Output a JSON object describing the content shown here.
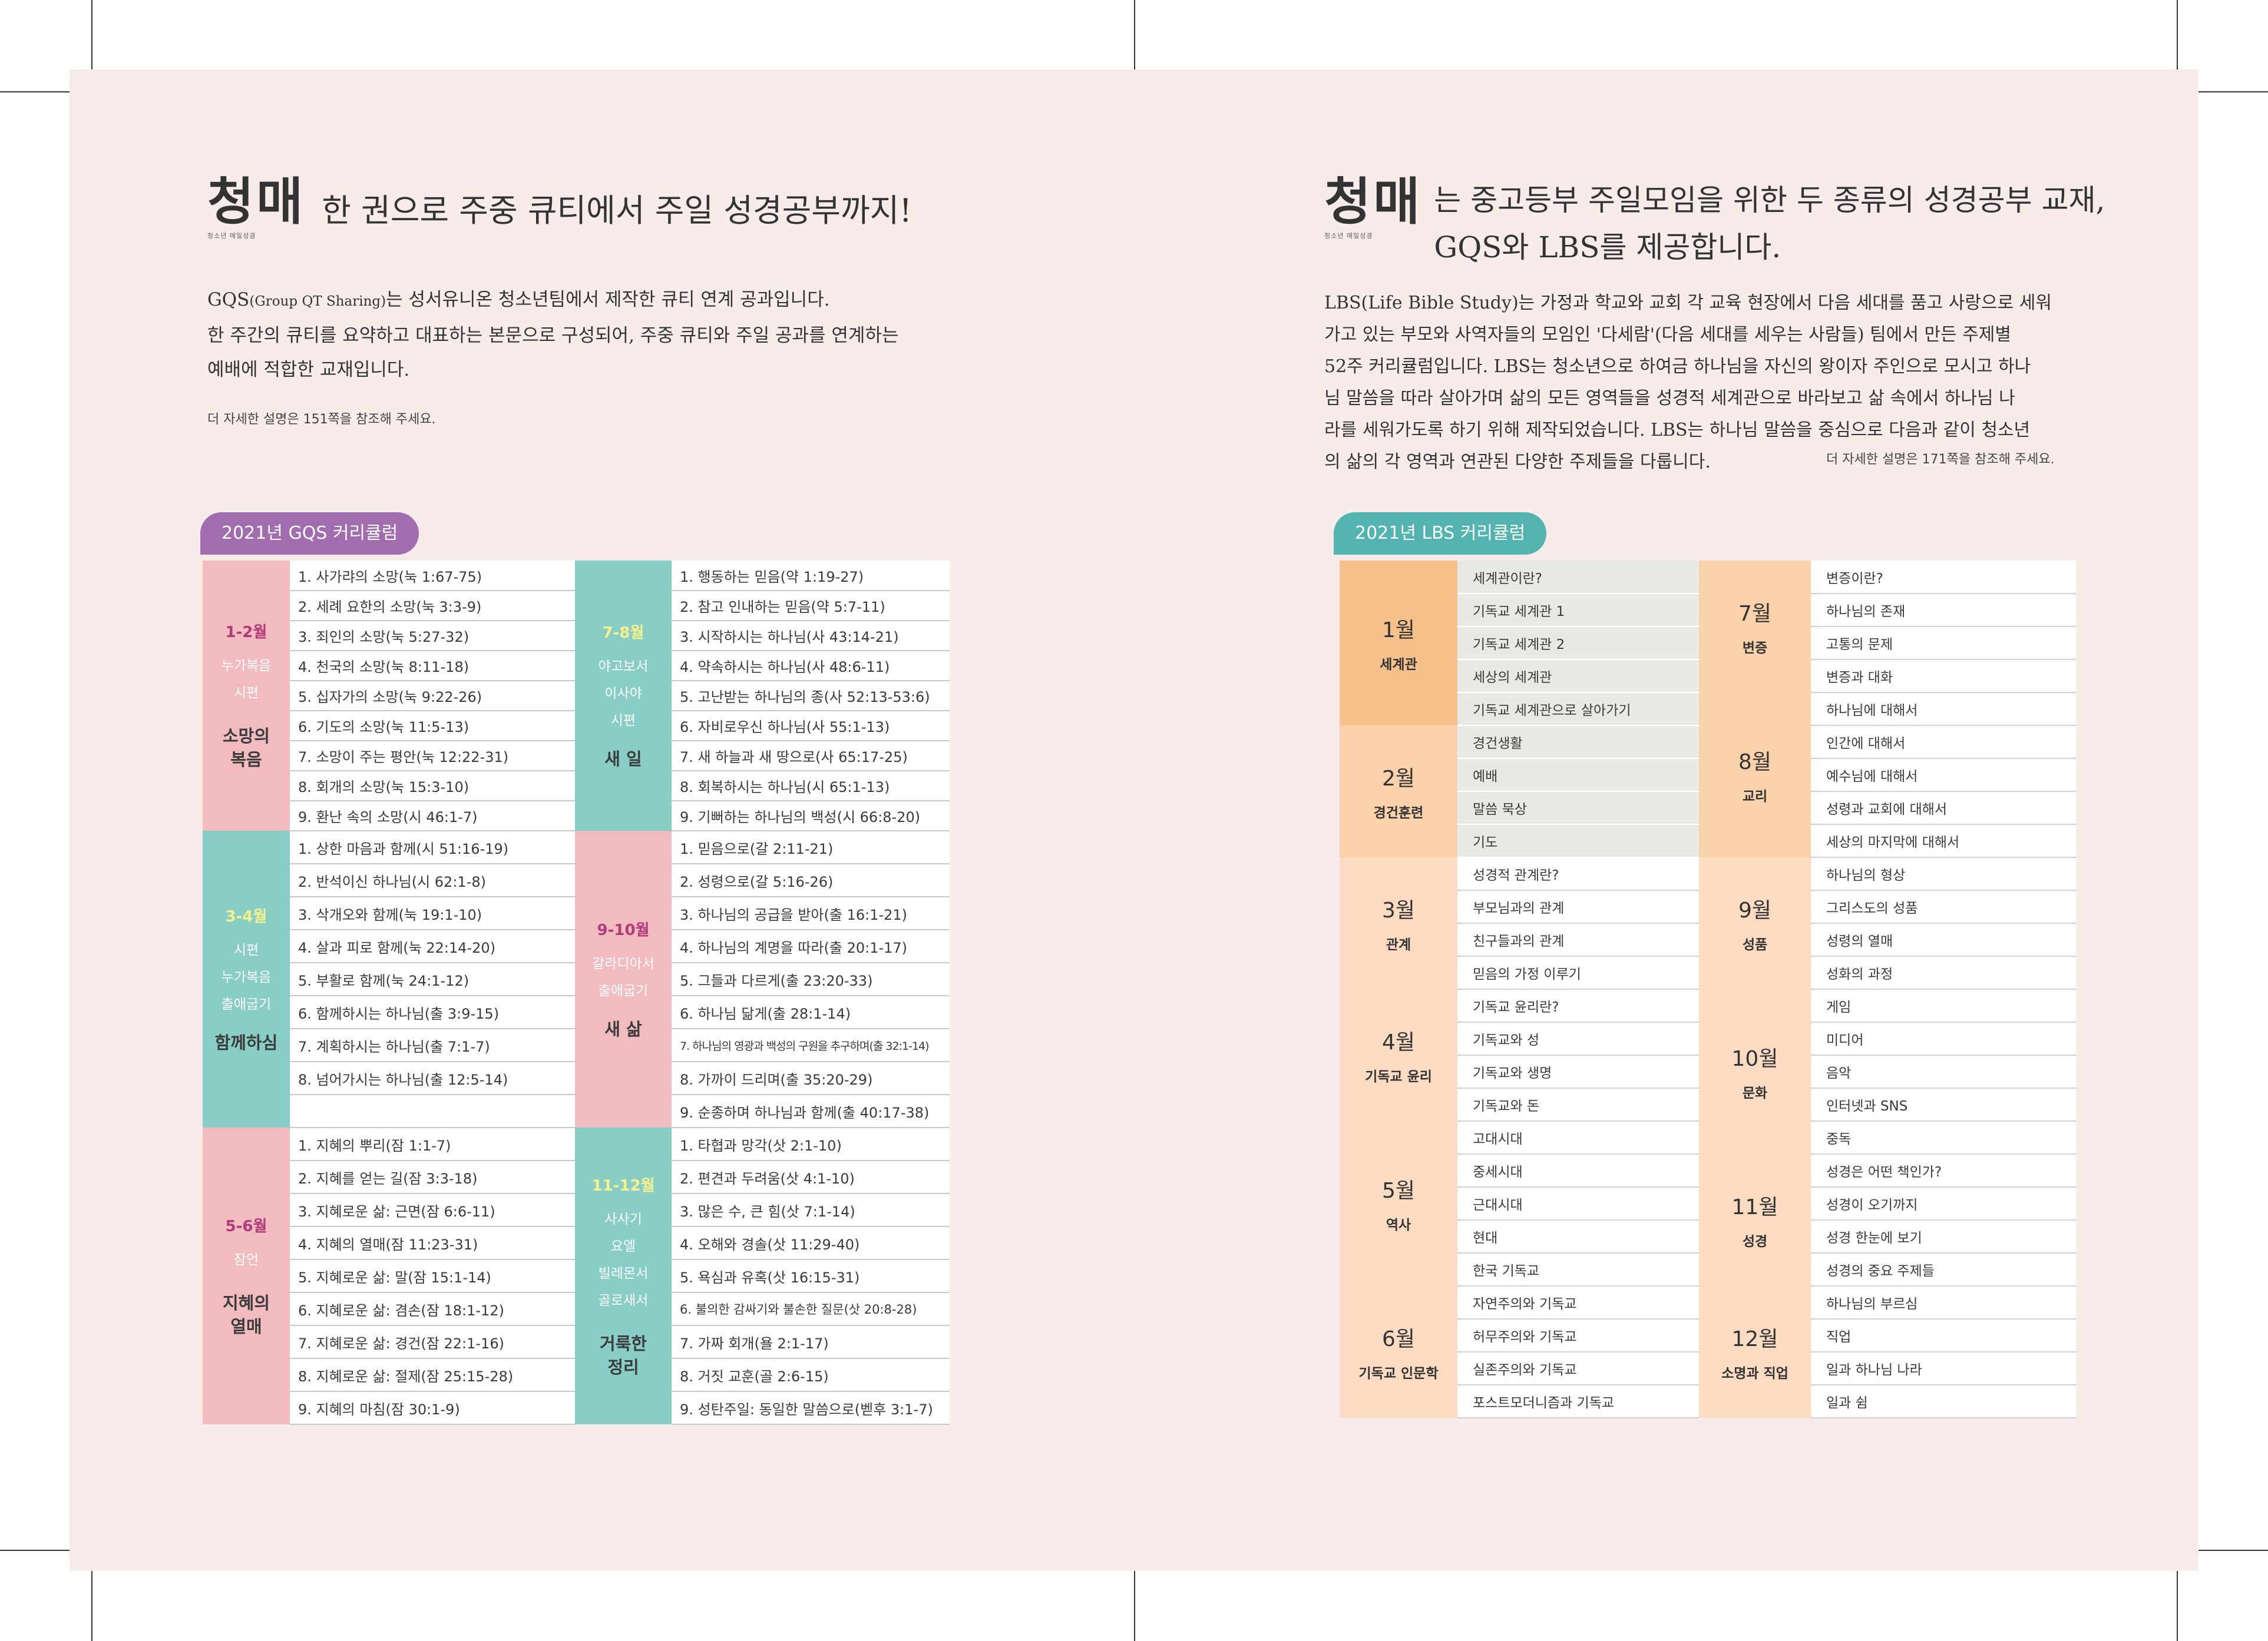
{
  "left": {
    "logo_text": "청매",
    "logo_sub": "청소년 매일성경",
    "tagline": "한 권으로 주중 큐티에서 주일 성경공부까지!",
    "intro": {
      "l1a": "GQS",
      "l1b": "(Group QT Sharing)",
      "l1c": "는 성서유니온 청소년팀에서 제작한 큐티 연계 공과입니다.",
      "l2": "한 주간의 큐티를 요약하고 대표하는 본문으로 구성되어, 주중 큐티와 주일 공과를 연계하는",
      "l3": "예배에 적합한 교재입니다."
    },
    "note": "더 자세한 설명은 151쪽을 참조해 주세요.",
    "tab": "2021년 GQS 커리큘럼",
    "groups": [
      {
        "month": "1-2월",
        "book1": "누가복음",
        "book2": "시편",
        "book3": "",
        "theme1": "소망의",
        "theme2": "복음",
        "items": [
          "1. 사가랴의 소망(눅 1:67-75)",
          "2. 세례 요한의 소망(눅 3:3-9)",
          "3. 죄인의 소망(눅 5:27-32)",
          "4. 천국의 소망(눅 8:11-18)",
          "5. 십자가의 소망(눅 9:22-26)",
          "6. 기도의 소망(눅 11:5-13)",
          "7. 소망이 주는 평안(눅 12:22-31)",
          "8. 회개의 소망(눅 15:3-10)",
          "9. 환난 속의 소망(시 46:1-7)"
        ]
      },
      {
        "month": "7-8월",
        "book1": "야고보서",
        "book2": "이사야",
        "book3": "시편",
        "theme1": "새 일",
        "theme2": "",
        "items": [
          "1. 행동하는 믿음(약 1:19-27)",
          "2. 참고 인내하는 믿음(약 5:7-11)",
          "3. 시작하시는 하나님(사 43:14-21)",
          "4. 약속하시는 하나님(사 48:6-11)",
          "5. 고난받는 하나님의 종(사 52:13-53:6)",
          "6. 자비로우신 하나님(사 55:1-13)",
          "7. 새 하늘과 새 땅으로(사 65:17-25)",
          "8. 회복하시는 하나님(시 65:1-13)",
          "9. 기뻐하는 하나님의 백성(시 66:8-20)"
        ]
      },
      {
        "month": "3-4월",
        "book1": "시편",
        "book2": "누가복음",
        "book3": "출애굽기",
        "theme1": "함께하심",
        "theme2": "",
        "items": [
          "1. 상한 마음과 함께(시 51:16-19)",
          "2. 반석이신 하나님(시 62:1-8)",
          "3. 삭개오와 함께(눅 19:1-10)",
          "4. 살과 피로 함께(눅 22:14-20)",
          "5. 부활로 함께(눅 24:1-12)",
          "6. 함께하시는 하나님(출 3:9-15)",
          "7. 계획하시는 하나님(출 7:1-7)",
          "8. 넘어가시는 하나님(출 12:5-14)",
          ""
        ]
      },
      {
        "month": "9-10월",
        "book1": "갈라디아서",
        "book2": "출애굽기",
        "book3": "",
        "theme1": "새 삶",
        "theme2": "",
        "items": [
          "1. 믿음으로(갈 2:11-21)",
          "2. 성령으로(갈 5:16-26)",
          "3. 하나님의 공급을 받아(출 16:1-21)",
          "4. 하나님의 계명을 따라(출 20:1-17)",
          "5. 그들과 다르게(출 23:20-33)",
          "6. 하나님 닮게(출 28:1-14)",
          "7. 하나님의 영광과 백성의 구원을 추구하며(출 32:1-14)",
          "8. 가까이 드리며(출 35:20-29)",
          "9. 순종하며 하나님과 함께(출 40:17-38)"
        ]
      },
      {
        "month": "5-6월",
        "book1": "잠언",
        "book2": "",
        "book3": "",
        "theme1": "지혜의",
        "theme2": "열매",
        "items": [
          "1. 지혜의 뿌리(잠 1:1-7)",
          "2. 지혜를 얻는 길(잠 3:3-18)",
          "3. 지혜로운 삶: 근면(잠 6:6-11)",
          "4. 지혜의 열매(잠 11:23-31)",
          "5. 지혜로운 삶: 말(잠 15:1-14)",
          "6. 지혜로운 삶: 겸손(잠 18:1-12)",
          "7. 지혜로운 삶: 경건(잠 22:1-16)",
          "8. 지혜로운 삶: 절제(잠 25:15-28)",
          "9. 지혜의 마침(잠 30:1-9)"
        ]
      },
      {
        "month": "11-12월",
        "book1": "사사기",
        "book2": "요엘",
        "book3": "빌레몬서",
        "book4": "골로새서",
        "theme1": "거룩한",
        "theme2": "정리",
        "items": [
          "1. 타협과 망각(삿 2:1-10)",
          "2. 편견과 두려움(삿 4:1-10)",
          "3. 많은 수, 큰 힘(삿 7:1-14)",
          "4. 오해와 경솔(삿 11:29-40)",
          "5. 욕심과 유혹(삿 16:15-31)",
          "6. 불의한 감싸기와 불손한 질문(삿 20:8-28)",
          "7. 가짜 회개(욜 2:1-17)",
          "8. 거짓 교훈(골 2:6-15)",
          "9. 성탄주일: 동일한 말씀으로(벧후 3:1-7)"
        ]
      }
    ]
  },
  "right": {
    "logo_text": "청매",
    "logo_sub": "청소년 매일성경",
    "tagline1": "는 중고등부 주일모임을 위한 두 종류의 성경공부 교재,",
    "tagline2": "GQS와 LBS를 제공합니다.",
    "intro": {
      "l1": "LBS(Life Bible Study)는 가정과 학교와 교회 각 교육 현장에서 다음 세대를 품고 사랑으로 세워",
      "l2": "가고 있는 부모와 사역자들의 모임인 '다세람'(다음 세대를 세우는 사람들) 팀에서 만든 주제별",
      "l3": "52주 커리큘럼입니다. LBS는 청소년으로 하여금 하나님을 자신의 왕이자 주인으로 모시고 하나",
      "l4": "님 말씀을 따라 살아가며 삶의 모든 영역들을 성경적 세계관으로 바라보고 삶 속에서 하나님 나",
      "l5": "라를 세워가도록 하기 위해 제작되었습니다. LBS는 하나님 말씀을 중심으로 다음과 같이 청소년",
      "l6": "의 삶의 각 영역과 연관된 다양한 주제들을 다룹니다."
    },
    "note": "더 자세한 설명은 171쪽을 참조해 주세요.",
    "tab": "2021년 LBS 커리큘럼",
    "rows": [
      {
        "m1": "1월",
        "s1": "세계관",
        "t1": [
          "세계관이란?",
          "기독교 세계관 1",
          "기독교 세계관 2",
          "세상의 세계관",
          "기독교 세계관으로 살아가기"
        ],
        "m2": "7월",
        "s2": "변증",
        "t2": [
          "변증이란?",
          "하나님의 존재",
          "고통의 문제",
          "변증과 대화"
        ]
      },
      {
        "m1": "2월",
        "s1": "경건훈련",
        "t1": [
          "경건생활",
          "예배",
          "말씀 묵상",
          "기도"
        ],
        "m2": "8월",
        "s2": "교리",
        "t2": [
          "하나님에 대해서",
          "인간에 대해서",
          "예수님에 대해서",
          "성령과 교회에 대해서",
          "세상의 마지막에 대해서"
        ]
      },
      {
        "m1": "3월",
        "s1": "관계",
        "t1": [
          "성경적 관계란?",
          "부모님과의 관계",
          "친구들과의 관계",
          "믿음의 가정 이루기"
        ],
        "m2": "9월",
        "s2": "성품",
        "t2": [
          "하나님의 형상",
          "그리스도의 성품",
          "성령의 열매",
          "성화의 과정"
        ]
      },
      {
        "m1": "4월",
        "s1": "기독교 윤리",
        "t1": [
          "기독교 윤리란?",
          "기독교와 성",
          "기독교와 생명",
          "기독교와 돈"
        ],
        "m2": "10월",
        "s2": "문화",
        "t2": [
          "게임",
          "미디어",
          "음악",
          "인터넷과 SNS",
          "중독"
        ]
      },
      {
        "m1": "5월",
        "s1": "역사",
        "t1": [
          "고대시대",
          "중세시대",
          "근대시대",
          "현대",
          "한국 기독교"
        ],
        "m2": "11월",
        "s2": "성경",
        "t2": [
          "성경은 어떤 책인가?",
          "성경이 오기까지",
          "성경 한눈에 보기",
          "성경의 중요 주제들"
        ]
      },
      {
        "m1": "6월",
        "s1": "기독교 인문학",
        "t1": [
          "자연주의와 기독교",
          "허무주의와 기독교",
          "실존주의와 기독교",
          "포스트모더니즘과 기독교"
        ],
        "m2": "12월",
        "s2": "소명과 직업",
        "t2": [
          "하나님의 부르심",
          "직업",
          "일과 하나님 나라",
          "일과 쉼"
        ]
      }
    ]
  }
}
